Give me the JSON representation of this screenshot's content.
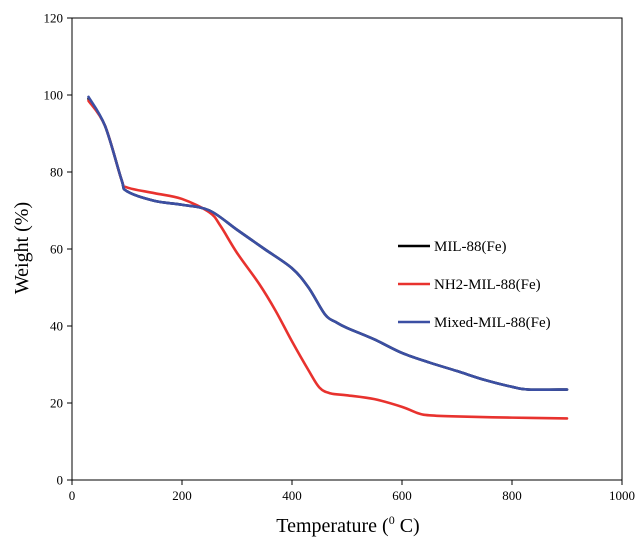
{
  "chart_data": {
    "type": "line",
    "title": "",
    "xlabel": "Temperature (⁰ C)",
    "xlabel_parts": {
      "base": "Temperature (",
      "superscript": "0",
      "suffix": " C)"
    },
    "ylabel": "Weight (%)",
    "xlim": [
      0,
      1000
    ],
    "ylim": [
      0,
      120
    ],
    "x_ticks": [
      0,
      200,
      400,
      600,
      800,
      1000
    ],
    "y_ticks": [
      0,
      20,
      40,
      60,
      80,
      100,
      120
    ],
    "grid": false,
    "legend_position": "center-right",
    "series": [
      {
        "name": "MIL-88(Fe)",
        "color": "#000000",
        "x": [
          30,
          60,
          90,
          100,
          150,
          200,
          250,
          300,
          350,
          400,
          430,
          460,
          480,
          500,
          550,
          600,
          650,
          700,
          750,
          800,
          830,
          900
        ],
        "y": [
          99,
          92,
          78,
          75,
          72.5,
          71.5,
          70,
          65,
          60,
          55,
          50,
          43,
          41,
          39.5,
          36.5,
          33,
          30.5,
          28.3,
          26,
          24.2,
          23.5,
          23.5
        ]
      },
      {
        "name": "NH2-MIL-88(Fe)",
        "color": "#e8322e",
        "x": [
          30,
          60,
          90,
          100,
          150,
          200,
          250,
          270,
          300,
          340,
          370,
          400,
          430,
          450,
          470,
          500,
          550,
          600,
          630,
          650,
          700,
          800,
          900
        ],
        "y": [
          98.5,
          92,
          78,
          76,
          74.5,
          73,
          69.5,
          66,
          59,
          51,
          44,
          36,
          28.5,
          24,
          22.5,
          22,
          21,
          19,
          17.3,
          16.8,
          16.5,
          16.2,
          16
        ]
      },
      {
        "name": "Mixed-MIL-88(Fe)",
        "color": "#3b4fa3",
        "x": [
          30,
          60,
          90,
          100,
          150,
          200,
          250,
          300,
          350,
          400,
          430,
          460,
          480,
          500,
          550,
          600,
          650,
          700,
          750,
          800,
          830,
          900
        ],
        "y": [
          99.5,
          92,
          78,
          75,
          72.5,
          71.5,
          70,
          65,
          60,
          55,
          50,
          43,
          41,
          39.5,
          36.5,
          33,
          30.5,
          28.3,
          26,
          24.2,
          23.5,
          23.5
        ]
      }
    ]
  }
}
